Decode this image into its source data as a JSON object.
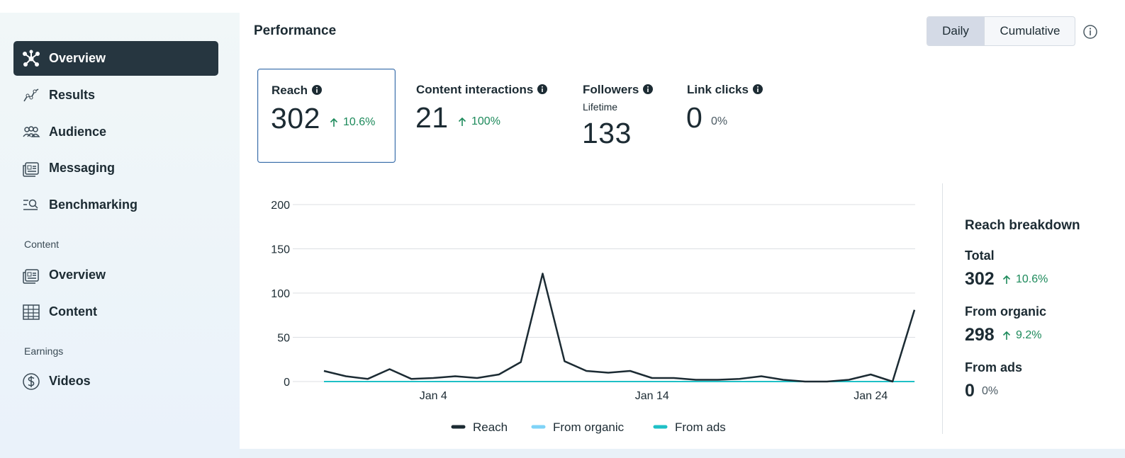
{
  "nav": [
    {
      "items": [
        {
          "label": "Overview"
        },
        {
          "label": "Results"
        },
        {
          "label": "Audience"
        },
        {
          "label": "Messaging"
        },
        {
          "label": "Benchmarking"
        }
      ]
    },
    {
      "title": "Content",
      "items": [
        {
          "label": "Overview"
        },
        {
          "label": "Content"
        }
      ]
    },
    {
      "title": "Earnings",
      "items": [
        {
          "label": "Videos"
        }
      ]
    }
  ],
  "header": {
    "title": "Performance",
    "toggle": [
      "Daily",
      "Cumulative"
    ]
  },
  "metrics": [
    {
      "label": "Reach",
      "value": "302",
      "change": "10.6%",
      "trend": "up"
    },
    {
      "label": "Content interactions",
      "value": "21",
      "change": "100%",
      "trend": "up"
    },
    {
      "label": "Followers",
      "sublabel": "Lifetime",
      "value": "133"
    },
    {
      "label": "Link clicks",
      "value": "0",
      "change": "0%",
      "trend": "flat"
    }
  ],
  "chart_data": {
    "type": "line",
    "categories": [
      null,
      null,
      null,
      null,
      null,
      "Jan 4",
      null,
      null,
      null,
      null,
      null,
      null,
      null,
      null,
      null,
      "Jan 14",
      null,
      null,
      null,
      null,
      null,
      null,
      null,
      null,
      null,
      "Jan 24",
      null,
      null
    ],
    "series": [
      {
        "name": "Reach",
        "color": "#1c2b33",
        "values": [
          12,
          6,
          3,
          14,
          3,
          4,
          6,
          4,
          8,
          22,
          122,
          23,
          12,
          10,
          12,
          4,
          4,
          2,
          2,
          3,
          6,
          2,
          0,
          0,
          2,
          8,
          0,
          81
        ]
      },
      {
        "name": "From organic",
        "color": "#7fd3f7",
        "values": [
          12,
          6,
          3,
          14,
          3,
          4,
          6,
          4,
          8,
          22,
          122,
          23,
          12,
          10,
          12,
          4,
          4,
          2,
          2,
          3,
          6,
          2,
          0,
          0,
          2,
          8,
          0,
          81
        ]
      },
      {
        "name": "From ads",
        "color": "#1fc0c6",
        "values": [
          0,
          0,
          0,
          0,
          0,
          0,
          0,
          0,
          0,
          0,
          0,
          0,
          0,
          0,
          0,
          0,
          0,
          0,
          0,
          0,
          0,
          0,
          0,
          0,
          0,
          0,
          0,
          0
        ]
      }
    ],
    "ylim": [
      0,
      200
    ],
    "yticks": [
      0,
      50,
      100,
      150,
      200
    ],
    "grid": true
  },
  "breakdown": {
    "title": "Reach breakdown",
    "items": [
      {
        "label": "Total",
        "value": "302",
        "change": "10.6%",
        "trend": "up"
      },
      {
        "label": "From organic",
        "value": "298",
        "change": "9.2%",
        "trend": "up"
      },
      {
        "label": "From ads",
        "value": "0",
        "change": "0%",
        "trend": "flat"
      }
    ]
  }
}
